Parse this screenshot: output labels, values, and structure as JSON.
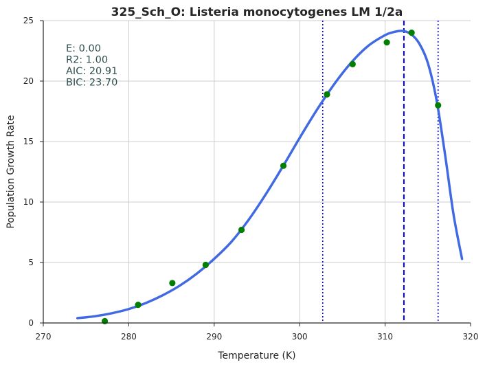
{
  "chart_data": {
    "type": "scatter",
    "title": "325_Sch_O: Listeria monocytogenes LM 1/2a",
    "xlabel": "Temperature (K)",
    "ylabel": "Population Growth Rate",
    "xlim": [
      270,
      320
    ],
    "ylim": [
      0,
      25
    ],
    "xticks": [
      270,
      280,
      290,
      300,
      310,
      320
    ],
    "yticks": [
      0,
      5,
      10,
      15,
      20,
      25
    ],
    "grid": true,
    "stats_text": [
      "E:  0.00",
      "R2:  1.00",
      "AIC: 20.91",
      "BIC: 23.70"
    ],
    "colors": {
      "points": "#007f00",
      "fit": "#4169e1",
      "vlines": "#0000ff",
      "grid": "#cccccc",
      "stats": "#2f4f4f"
    },
    "series": [
      {
        "kind": "points",
        "x": [
          277.2,
          281.1,
          285.1,
          289.0,
          293.2,
          298.1,
          303.2,
          306.2,
          310.2,
          313.1,
          316.2
        ],
        "y": [
          0.15,
          1.5,
          3.3,
          4.8,
          7.7,
          13.0,
          18.9,
          21.4,
          23.2,
          24.0,
          18.0
        ]
      },
      {
        "kind": "line",
        "x": [
          274,
          276,
          278,
          280,
          282,
          284,
          286,
          288,
          290,
          292,
          294,
          296,
          298,
          300,
          302,
          304,
          306,
          308,
          310,
          311,
          312,
          313,
          314,
          315,
          316,
          317,
          318,
          319
        ],
        "y": [
          0.4,
          0.55,
          0.8,
          1.15,
          1.65,
          2.3,
          3.1,
          4.1,
          5.3,
          6.7,
          8.5,
          10.6,
          12.9,
          15.3,
          17.6,
          19.7,
          21.5,
          22.9,
          23.8,
          24.05,
          24.15,
          23.9,
          23.1,
          21.5,
          18.5,
          14.0,
          9.0,
          5.3
        ]
      }
    ],
    "vlines": [
      {
        "x": 302.7,
        "style": "dotted"
      },
      {
        "x": 312.2,
        "style": "dashed"
      },
      {
        "x": 316.2,
        "style": "dotted"
      }
    ]
  }
}
